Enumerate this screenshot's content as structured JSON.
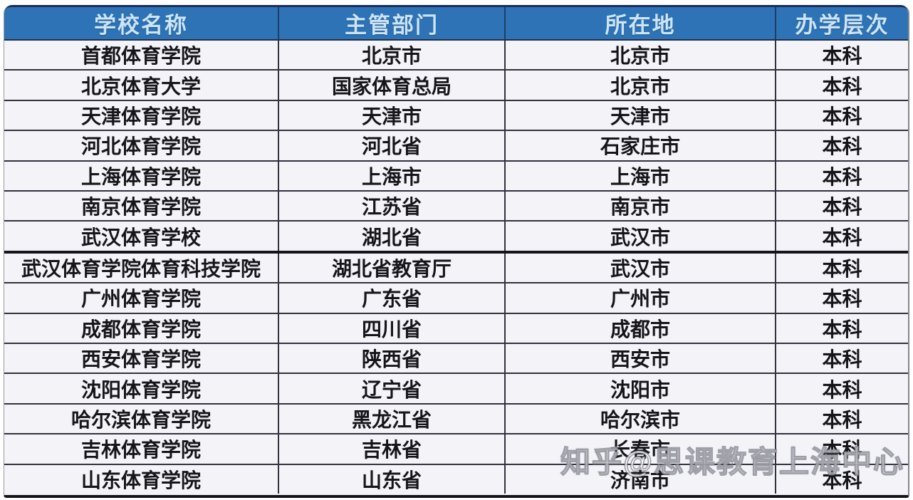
{
  "table": {
    "columns": [
      {
        "key": "school",
        "label": "学校名称"
      },
      {
        "key": "dept",
        "label": "主管部门"
      },
      {
        "key": "location",
        "label": "所在地"
      },
      {
        "key": "level",
        "label": "办学层次"
      }
    ],
    "rows": [
      [
        "首都体育学院",
        "北京市",
        "北京市",
        "本科"
      ],
      [
        "北京体育大学",
        "国家体育总局",
        "北京市",
        "本科"
      ],
      [
        "天津体育学院",
        "天津市",
        "天津市",
        "本科"
      ],
      [
        "河北体育学院",
        "河北省",
        "石家庄市",
        "本科"
      ],
      [
        "上海体育学院",
        "上海市",
        "上海市",
        "本科"
      ],
      [
        "南京体育学院",
        "江苏省",
        "南京市",
        "本科"
      ],
      [
        "武汉体育学校",
        "湖北省",
        "武汉市",
        "本科"
      ],
      [
        "武汉体育学院体育科技学院",
        "湖北省教育厅",
        "武汉市",
        "本科"
      ],
      [
        "广州体育学院",
        "广东省",
        "广州市",
        "本科"
      ],
      [
        "成都体育学院",
        "四川省",
        "成都市",
        "本科"
      ],
      [
        "西安体育学院",
        "陕西省",
        "西安市",
        "本科"
      ],
      [
        "沈阳体育学院",
        "辽宁省",
        "沈阳市",
        "本科"
      ],
      [
        "哈尔滨体育学院",
        "黑龙江省",
        "哈尔滨市",
        "本科"
      ],
      [
        "吉林体育学院",
        "吉林省",
        "长春市",
        "本科"
      ],
      [
        "山东体育学院",
        "山东省",
        "济南市",
        "本科"
      ]
    ],
    "thick_border_before_row_index": 7
  },
  "chart_data": {
    "type": "table",
    "title": "",
    "columns": [
      "学校名称",
      "主管部门",
      "所在地",
      "办学层次"
    ],
    "rows": [
      [
        "首都体育学院",
        "北京市",
        "北京市",
        "本科"
      ],
      [
        "北京体育大学",
        "国家体育总局",
        "北京市",
        "本科"
      ],
      [
        "天津体育学院",
        "天津市",
        "天津市",
        "本科"
      ],
      [
        "河北体育学院",
        "河北省",
        "石家庄市",
        "本科"
      ],
      [
        "上海体育学院",
        "上海市",
        "上海市",
        "本科"
      ],
      [
        "南京体育学院",
        "江苏省",
        "南京市",
        "本科"
      ],
      [
        "武汉体育学校",
        "湖北省",
        "武汉市",
        "本科"
      ],
      [
        "武汉体育学院体育科技学院",
        "湖北省教育厅",
        "武汉市",
        "本科"
      ],
      [
        "广州体育学院",
        "广东省",
        "广州市",
        "本科"
      ],
      [
        "成都体育学院",
        "四川省",
        "成都市",
        "本科"
      ],
      [
        "西安体育学院",
        "陕西省",
        "西安市",
        "本科"
      ],
      [
        "沈阳体育学院",
        "辽宁省",
        "沈阳市",
        "本科"
      ],
      [
        "哈尔滨体育学院",
        "黑龙江省",
        "哈尔滨市",
        "本科"
      ],
      [
        "吉林体育学院",
        "吉林省",
        "长春市",
        "本科"
      ],
      [
        "山东体育学院",
        "山东省",
        "济南市",
        "本科"
      ]
    ]
  },
  "watermark": {
    "text": "知乎@思课教育上海中心"
  },
  "colors": {
    "header_bg": "#2d73b5",
    "header_text": "#cce4f7",
    "header_divider": "#1c3e68",
    "header_top_border": "#1a2e5c",
    "grid_line": "#32323f",
    "thick_line": "#14141b",
    "row_bg": "#f4f4f8",
    "cell_text": "#15151a",
    "page_bg": "#ffffff"
  }
}
